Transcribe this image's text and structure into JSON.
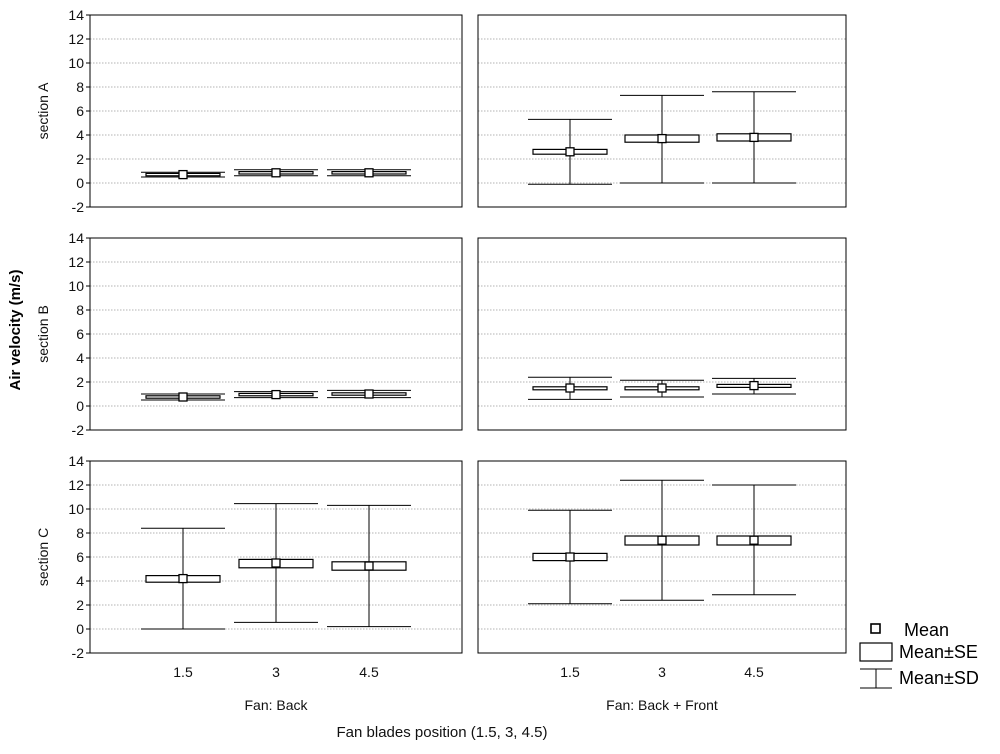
{
  "chart_data": {
    "type": "box",
    "ylabel": "Air velocity (m/s)",
    "xlabel": "Fan blades position (1.5, 3, 4.5)",
    "ylim": [
      -2,
      14
    ],
    "yticks": [
      -2,
      0,
      2,
      4,
      6,
      8,
      10,
      12,
      14
    ],
    "categories": [
      "1.5",
      "3",
      "4.5"
    ],
    "columns": [
      "Fan: Back",
      "Fan: Back + Front"
    ],
    "rows": [
      "section A",
      "section B",
      "section C"
    ],
    "grid": true,
    "legend": {
      "position": "bottom-right",
      "items": [
        "Mean",
        "Mean±SE",
        "Mean±SD"
      ]
    },
    "panels": [
      {
        "row": "section A",
        "column": "Fan: Back",
        "groups": [
          {
            "x": "1.5",
            "mean": 0.7,
            "se_low": 0.6,
            "se_high": 0.8,
            "sd_low": 0.5,
            "sd_high": 0.9
          },
          {
            "x": "3",
            "mean": 0.85,
            "se_low": 0.75,
            "se_high": 0.95,
            "sd_low": 0.6,
            "sd_high": 1.1
          },
          {
            "x": "4.5",
            "mean": 0.85,
            "se_low": 0.75,
            "se_high": 0.95,
            "sd_low": 0.6,
            "sd_high": 1.1
          }
        ]
      },
      {
        "row": "section A",
        "column": "Fan: Back + Front",
        "groups": [
          {
            "x": "1.5",
            "mean": 2.6,
            "se_low": 2.4,
            "se_high": 2.8,
            "sd_low": -0.1,
            "sd_high": 5.3
          },
          {
            "x": "3",
            "mean": 3.7,
            "se_low": 3.4,
            "se_high": 4.0,
            "sd_low": 0.0,
            "sd_high": 7.3
          },
          {
            "x": "4.5",
            "mean": 3.8,
            "se_low": 3.5,
            "se_high": 4.1,
            "sd_low": 0.0,
            "sd_high": 7.6
          }
        ]
      },
      {
        "row": "section B",
        "column": "Fan: Back",
        "groups": [
          {
            "x": "1.5",
            "mean": 0.75,
            "se_low": 0.65,
            "se_high": 0.85,
            "sd_low": 0.5,
            "sd_high": 1.0
          },
          {
            "x": "3",
            "mean": 0.95,
            "se_low": 0.85,
            "se_high": 1.05,
            "sd_low": 0.7,
            "sd_high": 1.2
          },
          {
            "x": "4.5",
            "mean": 1.0,
            "se_low": 0.9,
            "se_high": 1.1,
            "sd_low": 0.7,
            "sd_high": 1.3
          }
        ]
      },
      {
        "row": "section B",
        "column": "Fan: Back + Front",
        "groups": [
          {
            "x": "1.5",
            "mean": 1.5,
            "se_low": 1.35,
            "se_high": 1.6,
            "sd_low": 0.55,
            "sd_high": 2.4
          },
          {
            "x": "3",
            "mean": 1.5,
            "se_low": 1.35,
            "se_high": 1.6,
            "sd_low": 0.75,
            "sd_high": 2.15
          },
          {
            "x": "4.5",
            "mean": 1.7,
            "se_low": 1.55,
            "se_high": 1.8,
            "sd_low": 1.0,
            "sd_high": 2.3
          }
        ]
      },
      {
        "row": "section C",
        "column": "Fan: Back",
        "groups": [
          {
            "x": "1.5",
            "mean": 4.2,
            "se_low": 3.9,
            "se_high": 4.45,
            "sd_low": 0.0,
            "sd_high": 8.4
          },
          {
            "x": "3",
            "mean": 5.5,
            "se_low": 5.1,
            "se_high": 5.8,
            "sd_low": 0.55,
            "sd_high": 10.45
          },
          {
            "x": "4.5",
            "mean": 5.25,
            "se_low": 4.9,
            "se_high": 5.6,
            "sd_low": 0.2,
            "sd_high": 10.3
          }
        ]
      },
      {
        "row": "section C",
        "column": "Fan: Back + Front",
        "groups": [
          {
            "x": "1.5",
            "mean": 6.0,
            "se_low": 5.7,
            "se_high": 6.3,
            "sd_low": 2.1,
            "sd_high": 9.9
          },
          {
            "x": "3",
            "mean": 7.4,
            "se_low": 7.0,
            "se_high": 7.75,
            "sd_low": 2.4,
            "sd_high": 12.4
          },
          {
            "x": "4.5",
            "mean": 7.4,
            "se_low": 7.0,
            "se_high": 7.75,
            "sd_low": 2.85,
            "sd_high": 12.0
          }
        ]
      }
    ]
  }
}
